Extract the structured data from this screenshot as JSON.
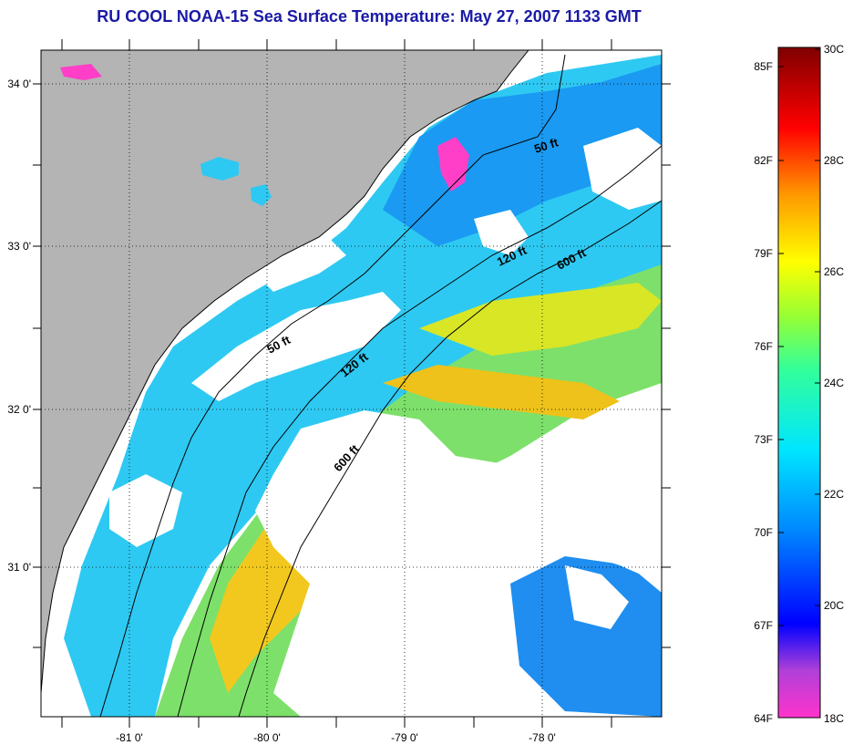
{
  "title": "RU COOL  NOAA-15  Sea Surface Temperature:  May 27, 2007 1133 GMT",
  "map": {
    "lon_labels": [
      "-81 0'",
      "-80 0'",
      "-79 0'",
      "-78 0'"
    ],
    "lat_labels": [
      "34 0'",
      "33 0'",
      "32 0'",
      "31 0'"
    ],
    "contours": [
      {
        "label": "50 ft"
      },
      {
        "label": "50 ft"
      },
      {
        "label": "120 ft"
      },
      {
        "label": "120 ft"
      },
      {
        "label": "600 ft"
      },
      {
        "label": "600 ft"
      }
    ],
    "land_color": "#b4b4b4",
    "cloud_color": "#ffffff"
  },
  "colorbar": {
    "fahrenheit_labels": [
      "85F",
      "82F",
      "79F",
      "76F",
      "73F",
      "70F",
      "67F",
      "64F"
    ],
    "celsius_labels": [
      "30C",
      "28C",
      "26C",
      "24C",
      "22C",
      "20C",
      "18C"
    ],
    "colors": [
      "#ff33cc",
      "#9933cc",
      "#0000ff",
      "#0088ff",
      "#00e6ff",
      "#66ff66",
      "#ffff00",
      "#ff9900",
      "#ff0000",
      "#800000"
    ]
  }
}
